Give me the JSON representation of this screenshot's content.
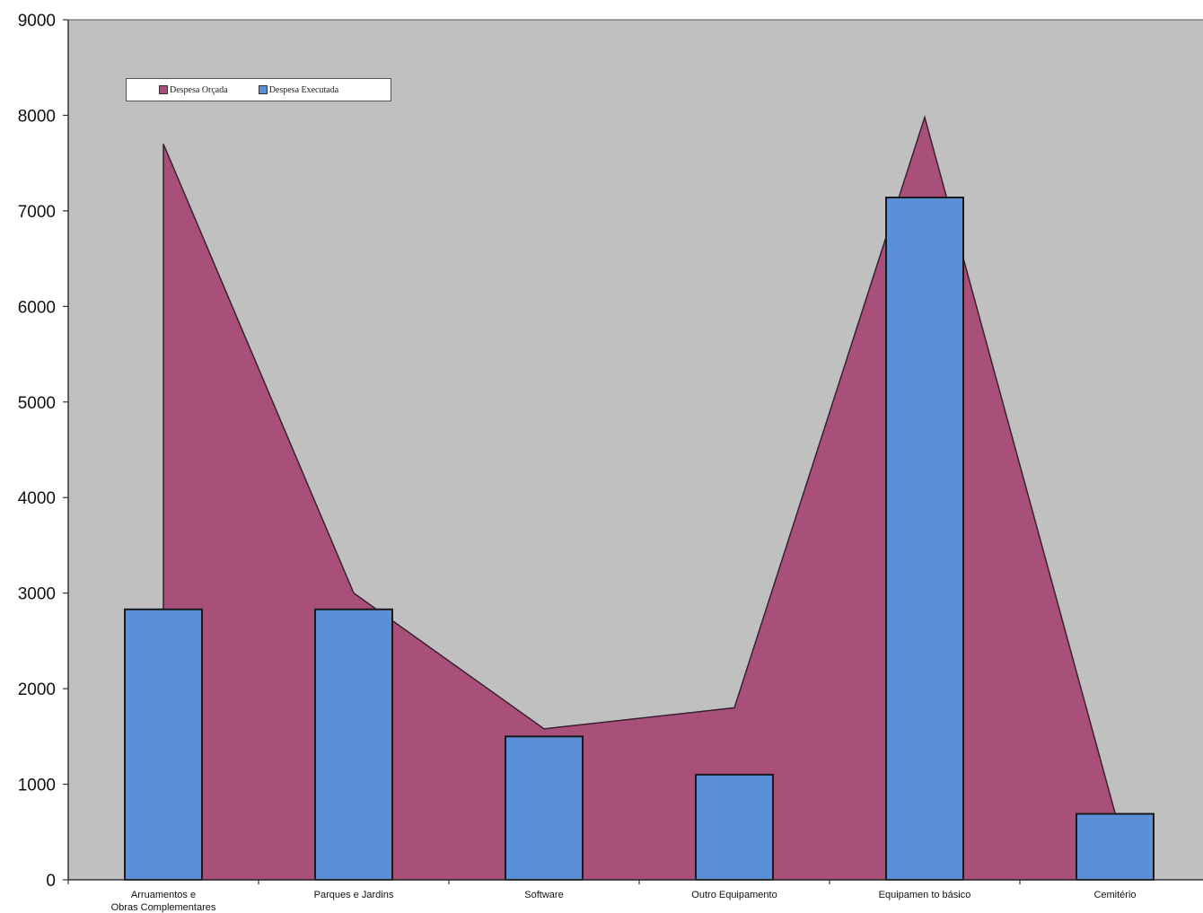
{
  "chart_data": {
    "type": "bar",
    "categories": [
      "Arruamentos e Obras Complementares",
      "Parques e Jardins",
      "Software",
      "Outro Equipamento",
      "Equipamen to básico",
      "Cemitério"
    ],
    "series": [
      {
        "name": "Despesa Orçada",
        "kind": "area",
        "values": [
          7700,
          3000,
          1580,
          1800,
          7980,
          700
        ],
        "color": "#a8507a"
      },
      {
        "name": "Despesa Executada",
        "kind": "bar",
        "values": [
          2830,
          2830,
          1500,
          1100,
          7140,
          690
        ],
        "color": "#5b8fd6"
      }
    ],
    "ylim": [
      0,
      9000
    ],
    "yticks": [
      "0",
      "1000",
      "2000",
      "3000",
      "4000",
      "5000",
      "6000",
      "7000",
      "8000",
      "9000"
    ],
    "xlabel": "",
    "ylabel": "",
    "title": "",
    "legend": "top-left",
    "plot_background": "#c0c0c0",
    "grid": false
  }
}
